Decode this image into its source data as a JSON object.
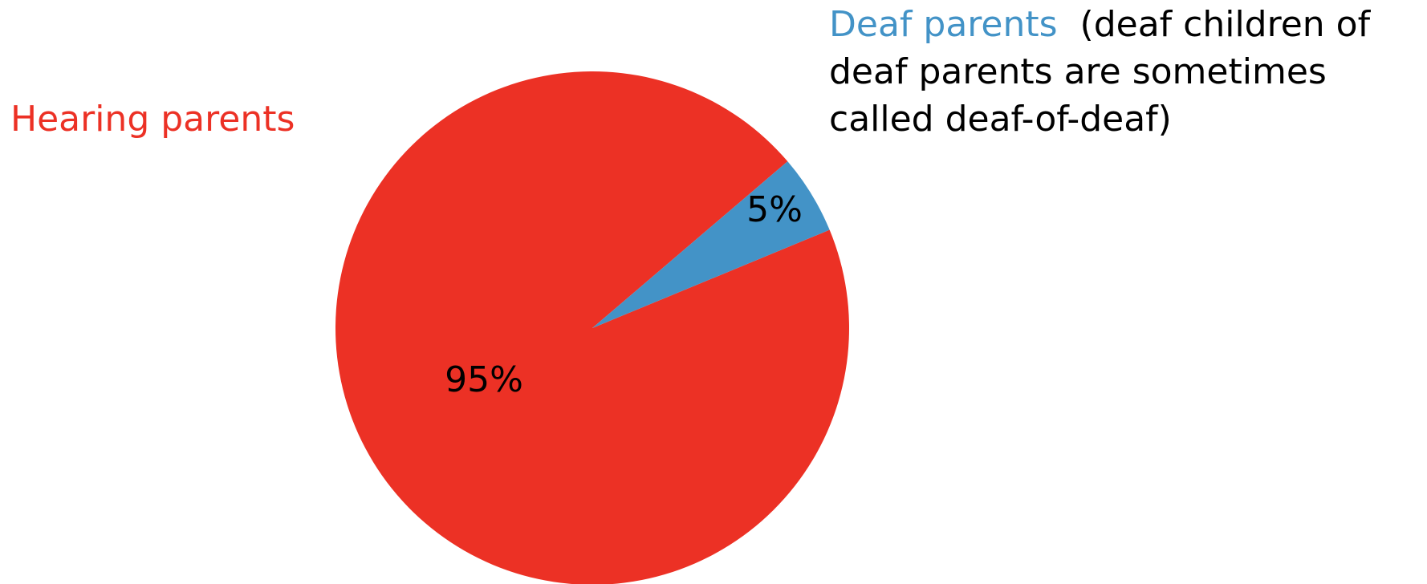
{
  "chart_data": {
    "type": "pie",
    "slices": [
      {
        "label": "Hearing parents",
        "value": 95,
        "value_label": "95%",
        "color": "#ec3125"
      },
      {
        "label": "Deaf parents",
        "note": "(deaf children of deaf parents are sometimes called deaf-of-deaf)",
        "note_lines": [
          "(deaf children of",
          "deaf parents are sometimes",
          "called deaf-of-deaf)"
        ],
        "value": 5,
        "value_label": "5%",
        "color": "#4393c7"
      }
    ],
    "title": "",
    "legend": "none"
  }
}
